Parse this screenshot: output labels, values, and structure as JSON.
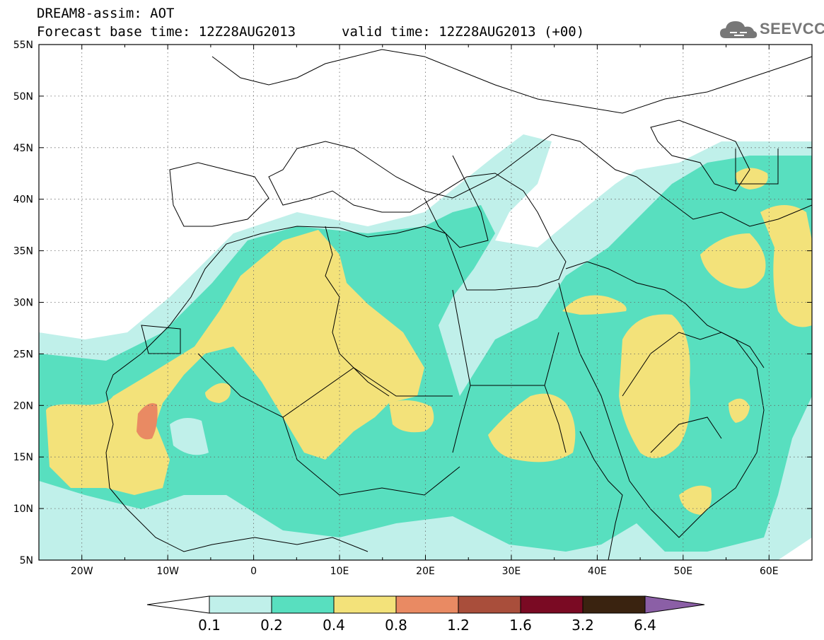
{
  "header": {
    "line1": "DREAM8-assim: AOT",
    "line2a": "Forecast base time: 12Z28AUG2013",
    "line2b": "valid time: 12Z28AUG2013 (+00)"
  },
  "logo": {
    "text": "SEEVCCC",
    "icon": "cloud-icon"
  },
  "map": {
    "lon_range": [
      -25,
      65
    ],
    "lat_range": [
      5,
      55
    ],
    "lat_ticks": [
      "5N",
      "10N",
      "15N",
      "20N",
      "25N",
      "30N",
      "35N",
      "40N",
      "45N",
      "50N",
      "55N"
    ],
    "lon_ticks": [
      "20W",
      "10W",
      "0",
      "10E",
      "20E",
      "30E",
      "40E",
      "50E",
      "60E"
    ],
    "background_color": "#ffffff",
    "gridlines": "dotted"
  },
  "colorbar": {
    "labels": [
      "0.1",
      "0.2",
      "0.4",
      "0.8",
      "1.2",
      "1.6",
      "3.2",
      "6.4"
    ],
    "colors": [
      "#c0f0ea",
      "#58dfbf",
      "#f3e27a",
      "#e98a63",
      "#a94e3b",
      "#7a0a23",
      "#3a2310",
      "#8b5fa6"
    ]
  }
}
